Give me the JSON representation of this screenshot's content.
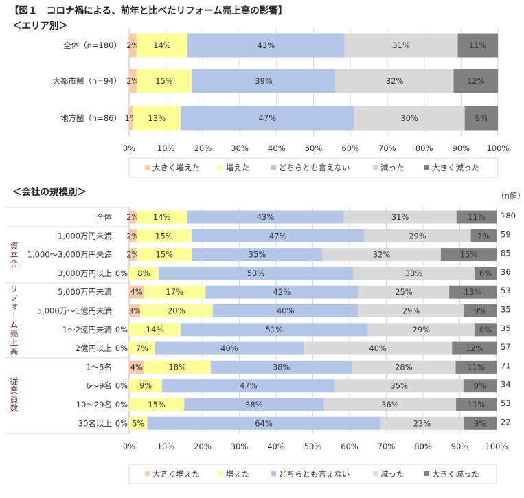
{
  "title": "【図１　コロナ禍による、前年と比べたリフォーム売上高の影響】",
  "legend": [
    {
      "name": "大きく増えた",
      "color": "#f8cbad"
    },
    {
      "name": "増えた",
      "color": "#ffff99"
    },
    {
      "name": "どちらとも言えない",
      "color": "#b4c6e7"
    },
    {
      "name": "減った",
      "color": "#d9d9d9"
    },
    {
      "name": "大きく減った",
      "color": "#808080"
    }
  ],
  "chart_data": [
    {
      "type": "bar",
      "orientation": "horizontal",
      "stacked": "100%",
      "title": "＜エリア別＞",
      "categories": [
        "全体（n=180）",
        "大都市圏（n=94）",
        "地方圏（n=86）"
      ],
      "series": [
        {
          "name": "大きく増えた",
          "values": [
            2,
            2,
            1
          ]
        },
        {
          "name": "増えた",
          "values": [
            14,
            15,
            13
          ]
        },
        {
          "name": "どちらとも言えない",
          "values": [
            43,
            39,
            47
          ]
        },
        {
          "name": "減った",
          "values": [
            31,
            32,
            30
          ]
        },
        {
          "name": "大きく減った",
          "values": [
            11,
            12,
            9
          ]
        }
      ],
      "xticks": [
        "0%",
        "10%",
        "20%",
        "30%",
        "40%",
        "50%",
        "60%",
        "70%",
        "80%",
        "90%",
        "100%"
      ],
      "xlim": [
        0,
        100
      ],
      "grid": true,
      "legend_position": "bottom"
    },
    {
      "type": "bar",
      "orientation": "horizontal",
      "stacked": "100%",
      "title": "＜会社の規模別＞",
      "n_header": "（n値）",
      "groups": [
        {
          "name": "",
          "rows": [
            0
          ]
        },
        {
          "name": "資本金",
          "rows": [
            1,
            2,
            3
          ]
        },
        {
          "name": "リフォーム売上高",
          "rows": [
            4,
            5,
            6,
            7
          ]
        },
        {
          "name": "従業員数",
          "rows": [
            8,
            9,
            10,
            11
          ]
        }
      ],
      "categories": [
        "全体",
        "1,000万円未満",
        "1,000～3,000万円未満",
        "3,000万円以上",
        "5,000万円未満",
        "5,000万～1億円未満",
        "1～2億円未満",
        "2億円以上",
        "1～5名",
        "6～9名",
        "10～29名",
        "30名以上"
      ],
      "n": [
        180,
        59,
        85,
        36,
        53,
        35,
        35,
        57,
        71,
        34,
        53,
        22
      ],
      "series": [
        {
          "name": "大きく増えた",
          "values": [
            2,
            2,
            2,
            0,
            4,
            3,
            0,
            0,
            4,
            0,
            0,
            0
          ]
        },
        {
          "name": "増えた",
          "values": [
            14,
            15,
            15,
            8,
            17,
            20,
            14,
            7,
            18,
            9,
            15,
            5
          ]
        },
        {
          "name": "どちらとも言えない",
          "values": [
            43,
            47,
            35,
            53,
            42,
            40,
            51,
            40,
            38,
            47,
            38,
            64
          ]
        },
        {
          "name": "減った",
          "values": [
            31,
            29,
            32,
            33,
            25,
            29,
            29,
            40,
            28,
            35,
            36,
            23
          ]
        },
        {
          "name": "大きく減った",
          "values": [
            11,
            7,
            15,
            6,
            13,
            9,
            6,
            12,
            11,
            9,
            11,
            9
          ]
        }
      ],
      "xticks": [
        "0%",
        "10%",
        "20%",
        "30%",
        "40%",
        "50%",
        "60%",
        "70%",
        "80%",
        "90%",
        "100%"
      ],
      "xlim": [
        0,
        100
      ],
      "grid": true,
      "legend_position": "bottom"
    }
  ]
}
